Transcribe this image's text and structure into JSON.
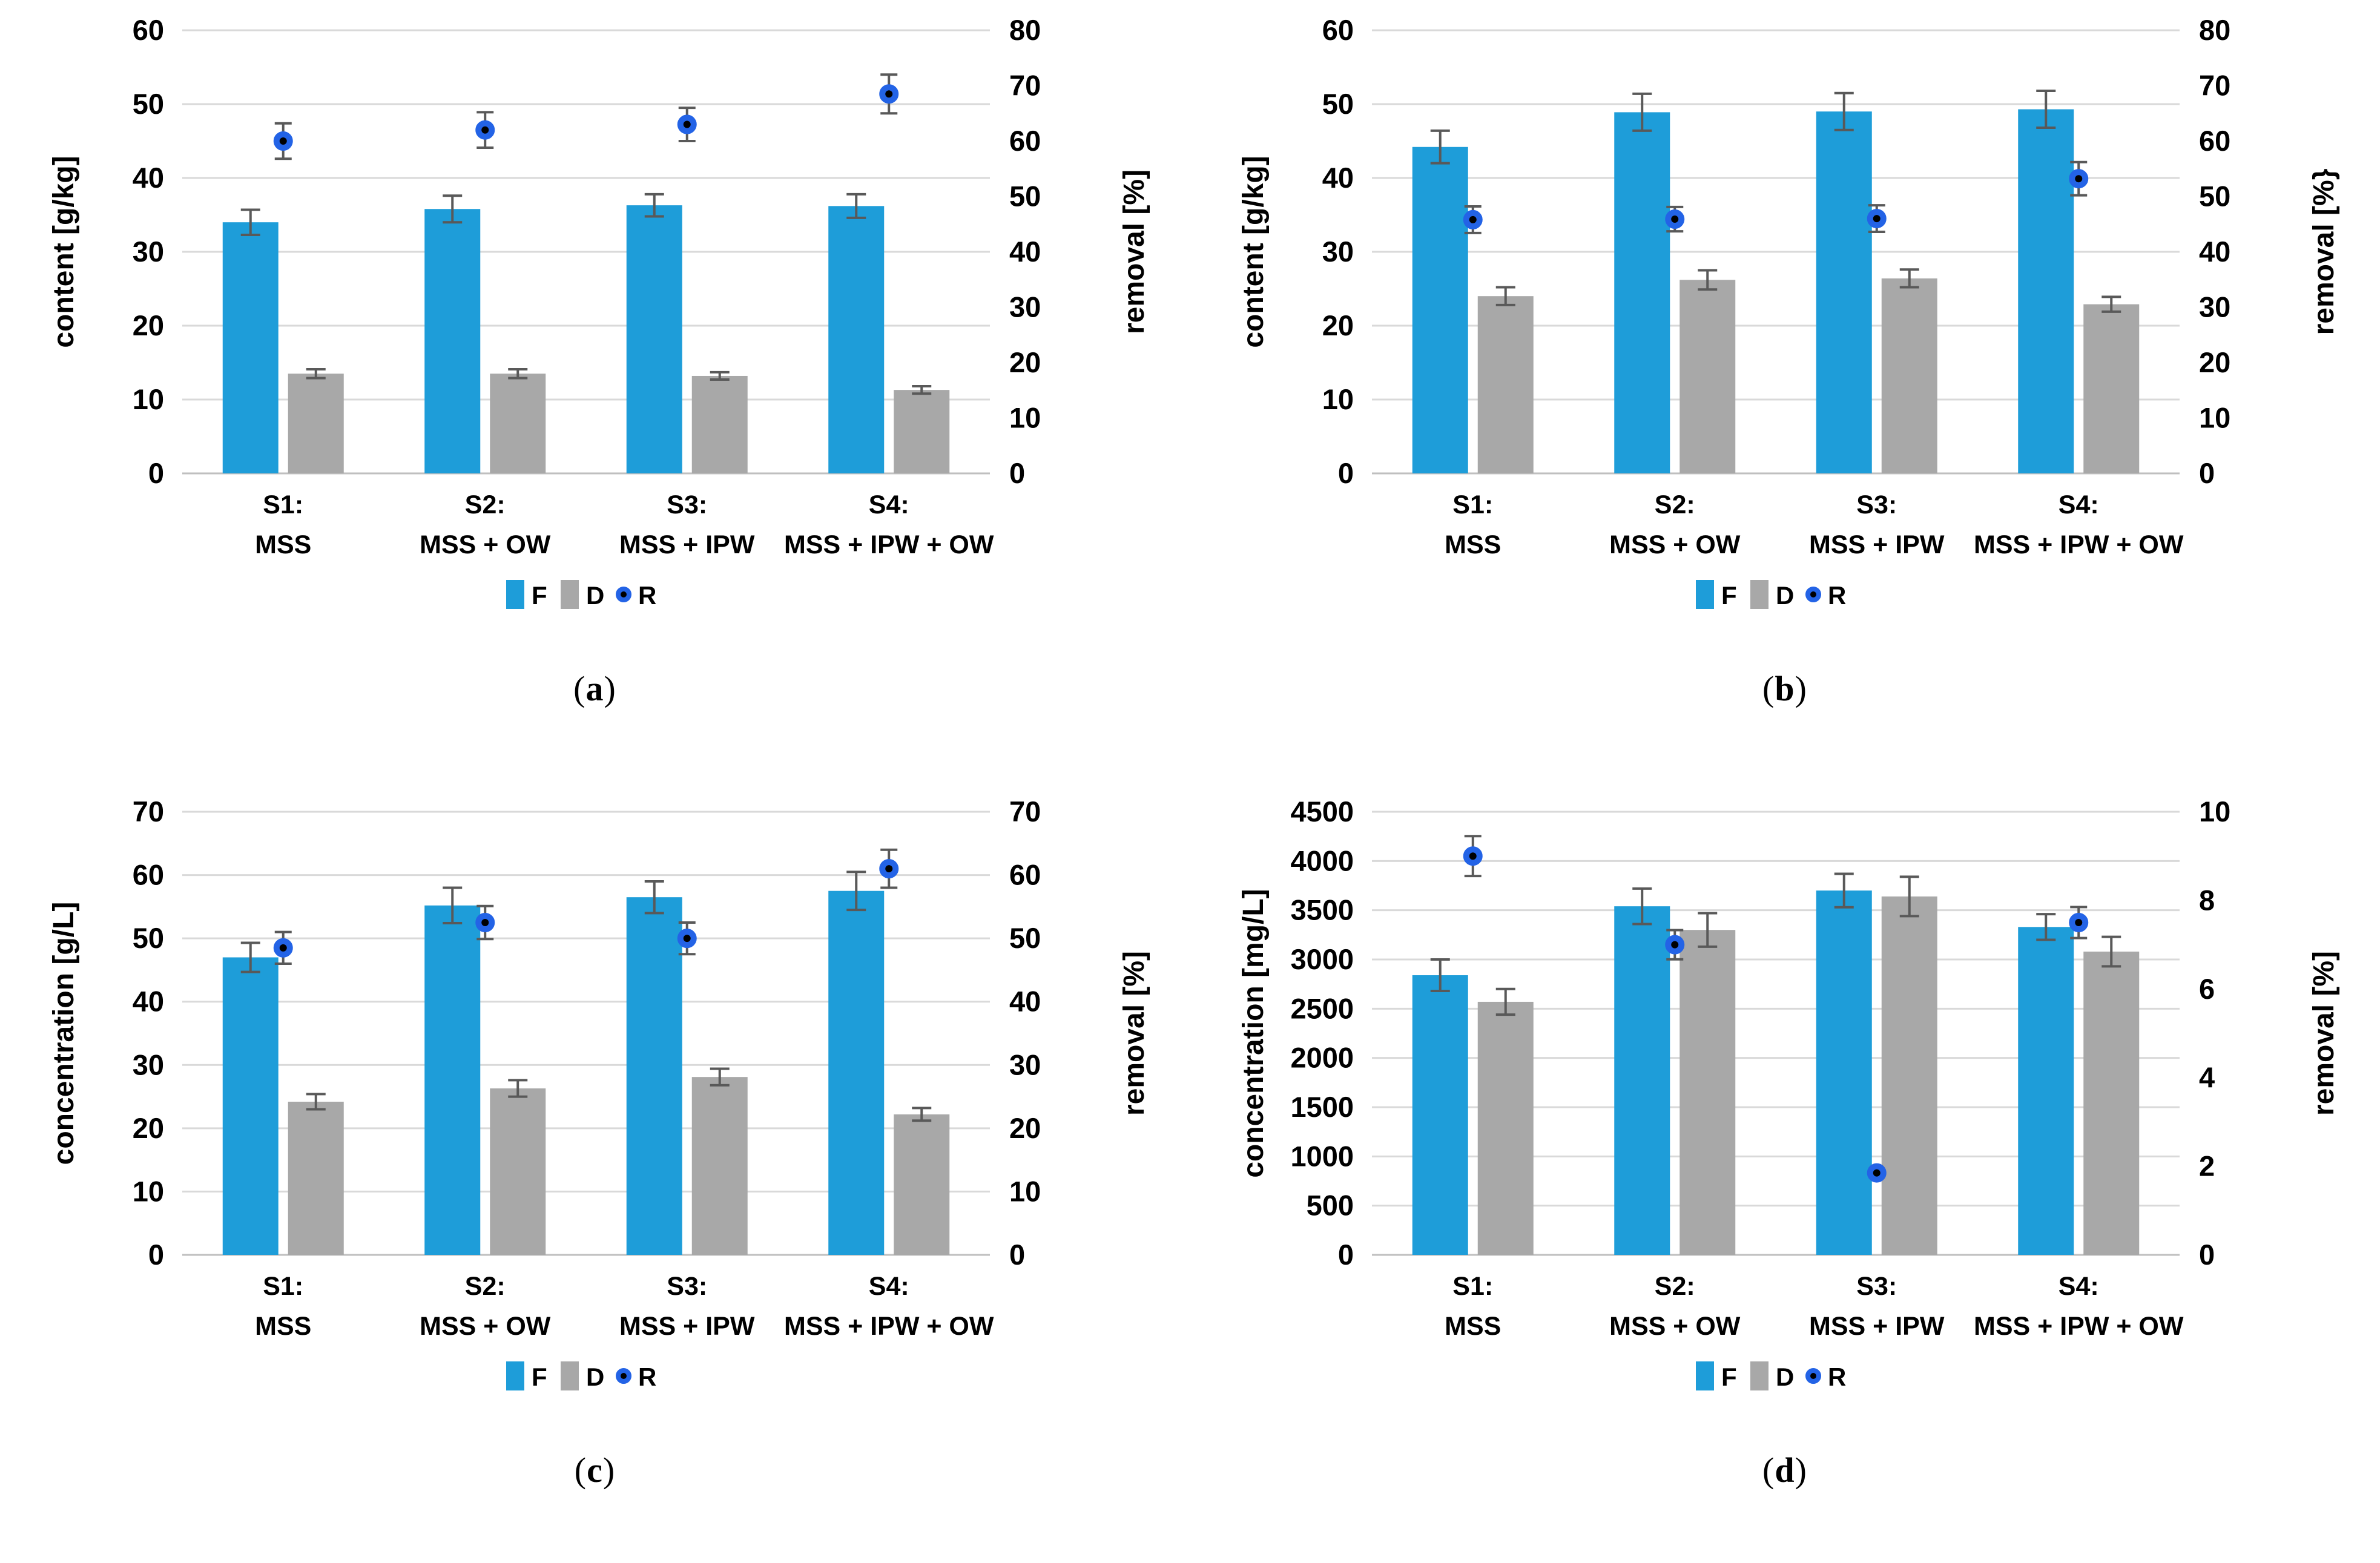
{
  "colors": {
    "bar_f": "#1E9DD9",
    "bar_d": "#A8A8A8",
    "marker_fill": "#000000",
    "marker_ring": "#2363E6",
    "error": "#595959",
    "grid": "#D9D9D9",
    "axis": "#BFBFBF",
    "text": "#000000"
  },
  "chart_data": [
    {
      "id": "a",
      "type": "bar",
      "caption_open": "(",
      "caption_letter": "a",
      "caption_close": ")",
      "left_axis": {
        "label": "content [g/kg]",
        "min": 0,
        "max": 60,
        "ticks": [
          0,
          10,
          20,
          30,
          40,
          50,
          60
        ]
      },
      "right_axis": {
        "label": "removal [%]",
        "min": 0,
        "max": 80,
        "ticks": [
          0,
          10,
          20,
          30,
          40,
          50,
          60,
          70,
          80
        ]
      },
      "categories": [
        [
          "S1:",
          "MSS"
        ],
        [
          "S2:",
          "MSS + OW"
        ],
        [
          "S3:",
          "MSS + IPW"
        ],
        [
          "S4:",
          "MSS + IPW + OW"
        ]
      ],
      "legend": [
        "F",
        "D",
        "R"
      ],
      "series": {
        "F": {
          "axis": "left",
          "values": [
            34,
            35.8,
            36.3,
            36.2
          ],
          "errors": [
            1.7,
            1.8,
            1.5,
            1.6
          ]
        },
        "D": {
          "axis": "left",
          "values": [
            13.5,
            13.5,
            13.2,
            11.3
          ],
          "errors": [
            0.6,
            0.6,
            0.5,
            0.5
          ]
        },
        "R": {
          "axis": "right",
          "values": [
            60,
            62,
            63,
            68.5
          ],
          "errors": [
            3.2,
            3.2,
            3,
            3.5
          ]
        }
      }
    },
    {
      "id": "b",
      "type": "bar",
      "caption_open": "(",
      "caption_letter": "b",
      "caption_close": ")",
      "left_axis": {
        "label": "content [g/kg]",
        "min": 0,
        "max": 60,
        "ticks": [
          0,
          10,
          20,
          30,
          40,
          50,
          60
        ]
      },
      "right_axis": {
        "label": "removal [%}",
        "min": 0,
        "max": 80,
        "ticks": [
          0,
          10,
          20,
          30,
          40,
          50,
          60,
          70,
          80
        ]
      },
      "categories": [
        [
          "S1:",
          "MSS"
        ],
        [
          "S2:",
          "MSS + OW"
        ],
        [
          "S3:",
          "MSS + IPW"
        ],
        [
          "S4:",
          "MSS + IPW + OW"
        ]
      ],
      "legend": [
        "F",
        "D",
        "R"
      ],
      "series": {
        "F": {
          "axis": "left",
          "values": [
            44.2,
            48.9,
            49,
            49.3
          ],
          "errors": [
            2.2,
            2.5,
            2.5,
            2.5
          ]
        },
        "D": {
          "axis": "left",
          "values": [
            24,
            26.2,
            26.4,
            22.9
          ],
          "errors": [
            1.2,
            1.3,
            1.2,
            1
          ]
        },
        "R": {
          "axis": "right",
          "values": [
            45.8,
            45.9,
            46,
            53.2
          ],
          "errors": [
            2.4,
            2.2,
            2.4,
            3
          ]
        }
      }
    },
    {
      "id": "c",
      "type": "bar",
      "caption_open": "(",
      "caption_letter": "c",
      "caption_close": ")",
      "left_axis": {
        "label": "concentration [g/L]",
        "min": 0,
        "max": 70,
        "ticks": [
          0,
          10,
          20,
          30,
          40,
          50,
          60,
          70
        ]
      },
      "right_axis": {
        "label": "removal [%]",
        "min": 0,
        "max": 70,
        "ticks": [
          0,
          10,
          20,
          30,
          40,
          50,
          60,
          70
        ]
      },
      "categories": [
        [
          "S1:",
          "MSS"
        ],
        [
          "S2:",
          "MSS + OW"
        ],
        [
          "S3:",
          "MSS + IPW"
        ],
        [
          "S4:",
          "MSS + IPW + OW"
        ]
      ],
      "legend": [
        "F",
        "D",
        "R"
      ],
      "series": {
        "F": {
          "axis": "left",
          "values": [
            47,
            55.2,
            56.5,
            57.5
          ],
          "errors": [
            2.3,
            2.8,
            2.5,
            3
          ]
        },
        "D": {
          "axis": "left",
          "values": [
            24.2,
            26.3,
            28.1,
            22.2
          ],
          "errors": [
            1.2,
            1.3,
            1.3,
            1
          ]
        },
        "R": {
          "axis": "right",
          "values": [
            48.5,
            52.5,
            50,
            61
          ],
          "errors": [
            2.5,
            2.6,
            2.5,
            3
          ]
        }
      }
    },
    {
      "id": "d",
      "type": "bar",
      "caption_open": "(",
      "caption_letter": "d",
      "caption_close": ")",
      "left_axis": {
        "label": "concentration [mg/L]",
        "min": 0,
        "max": 4500,
        "ticks": [
          0,
          500,
          1000,
          1500,
          2000,
          2500,
          3000,
          3500,
          4000,
          4500
        ]
      },
      "right_axis": {
        "label": "removal [%]",
        "min": 0,
        "max": 10,
        "ticks": [
          0,
          2,
          4,
          6,
          8,
          10
        ]
      },
      "categories": [
        [
          "S1:",
          "MSS"
        ],
        [
          "S2:",
          "MSS + OW"
        ],
        [
          "S3:",
          "MSS + IPW"
        ],
        [
          "S4:",
          "MSS + IPW + OW"
        ]
      ],
      "legend": [
        "F",
        "D",
        "R"
      ],
      "series": {
        "F": {
          "axis": "left",
          "values": [
            2840,
            3540,
            3700,
            3330
          ],
          "errors": [
            160,
            180,
            170,
            130
          ]
        },
        "D": {
          "axis": "left",
          "values": [
            2570,
            3300,
            3640,
            3080
          ],
          "errors": [
            130,
            170,
            200,
            150
          ]
        },
        "R": {
          "axis": "right",
          "values": [
            9,
            7,
            1.85,
            7.5
          ],
          "errors": [
            0.45,
            0.33,
            0,
            0.35
          ]
        }
      }
    }
  ]
}
